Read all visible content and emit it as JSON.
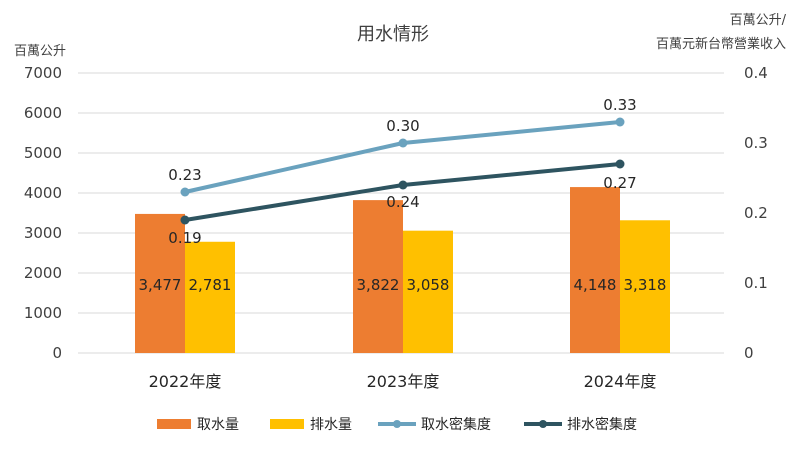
{
  "chart_data": {
    "type": "bar",
    "title": "用水情形",
    "left_axis_unit": "百萬公升",
    "right_axis_unit_line1": "百萬公升/",
    "right_axis_unit_line2": "百萬元新台幣營業收入",
    "categories": [
      "2022年度",
      "2023年度",
      "2024年度"
    ],
    "ylim_left": [
      0,
      7000
    ],
    "yticks_left": [
      "0",
      "1000",
      "2000",
      "3000",
      "4000",
      "5000",
      "6000",
      "7000"
    ],
    "ylim_right": [
      0,
      0.4
    ],
    "yticks_right": [
      "0",
      "0.1",
      "0.2",
      "0.3",
      "0.4"
    ],
    "grid": true,
    "legend_position": "bottom",
    "series": [
      {
        "name": "取水量",
        "kind": "bar",
        "axis": "left",
        "color": "#ED7D31",
        "values": [
          3477,
          3822,
          4148
        ],
        "labels": [
          "3,477",
          "3,822",
          "4,148"
        ]
      },
      {
        "name": "排水量",
        "kind": "bar",
        "axis": "left",
        "color": "#FFC000",
        "values": [
          2781,
          3058,
          3318
        ],
        "labels": [
          "2,781",
          "3,058",
          "3,318"
        ]
      },
      {
        "name": "取水密集度",
        "kind": "line",
        "axis": "right",
        "color": "#6AA2BE",
        "values": [
          0.23,
          0.3,
          0.33
        ],
        "labels": [
          "0.23",
          "0.30",
          "0.33"
        ]
      },
      {
        "name": "排水密集度",
        "kind": "line",
        "axis": "right",
        "color": "#2E5460",
        "values": [
          0.19,
          0.24,
          0.27
        ],
        "labels": [
          "0.19",
          "0.24",
          "0.27"
        ]
      }
    ]
  }
}
